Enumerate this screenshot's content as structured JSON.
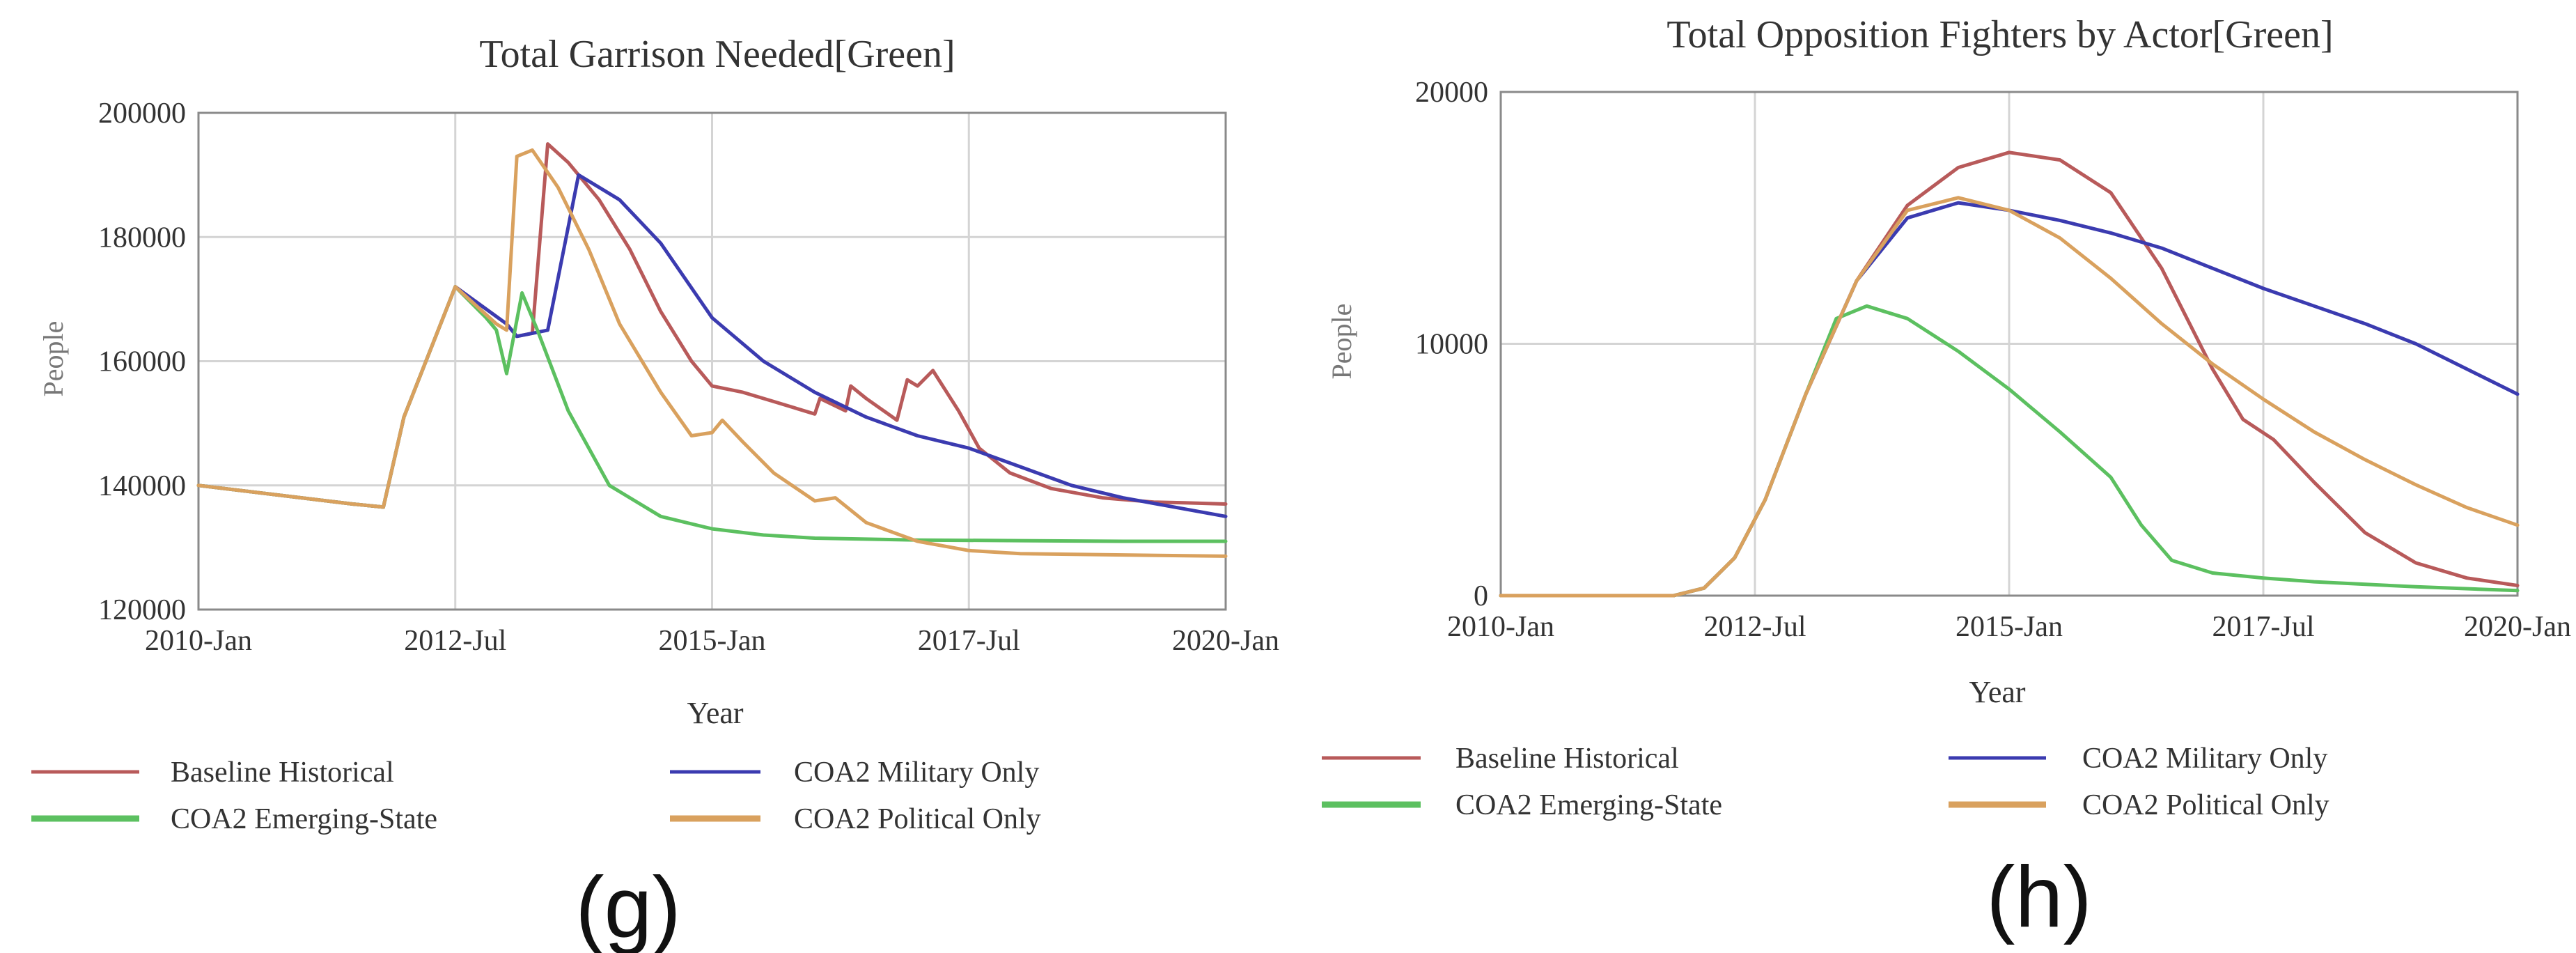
{
  "colors": {
    "baseline": "#B85A5A",
    "military": "#3B3BB0",
    "emerging": "#5CC060",
    "political": "#D9A15E",
    "grid": "#D4D4D4",
    "axis": "#8A8A8A",
    "text": "#333333",
    "ylabel": "#777777"
  },
  "charts": [
    {
      "panel_label": "(g)",
      "legend": [
        {
          "key": "baseline",
          "label": "Baseline Historical"
        },
        {
          "key": "military",
          "label": "COA2 Military Only"
        },
        {
          "key": "emerging",
          "label": "COA2 Emerging-State"
        },
        {
          "key": "political",
          "label": "COA2 Political Only"
        }
      ]
    },
    {
      "panel_label": "(h)",
      "legend": [
        {
          "key": "baseline",
          "label": "Baseline Historical"
        },
        {
          "key": "military",
          "label": "COA2 Military Only"
        },
        {
          "key": "emerging",
          "label": "COA2 Emerging-State"
        },
        {
          "key": "political",
          "label": "COA2 Political Only"
        }
      ]
    }
  ],
  "chart_data": [
    {
      "type": "line",
      "title": "Total Garrison Needed[Green]",
      "xlabel": "Year",
      "ylabel": "People",
      "xlim": [
        2010.0,
        2020.0
      ],
      "ylim": [
        120000,
        200000
      ],
      "yticks": [
        120000,
        140000,
        160000,
        180000,
        200000
      ],
      "ytick_labels": [
        "120000",
        "140000",
        "160000",
        "180000",
        "200000"
      ],
      "xticks": [
        2010.0,
        2012.5,
        2015.0,
        2017.5,
        2020.0
      ],
      "xtick_labels": [
        "2010-Jan",
        "2012-Jul",
        "2015-Jan",
        "2017-Jul",
        "2020-Jan"
      ],
      "grid": true,
      "series": [
        {
          "name": "Baseline Historical",
          "key": "baseline",
          "x": [
            2010.0,
            2011.5,
            2011.8,
            2012.0,
            2012.5,
            2013.0,
            2013.1,
            2013.25,
            2013.4,
            2013.6,
            2013.9,
            2014.2,
            2014.5,
            2014.8,
            2015.0,
            2015.3,
            2015.6,
            2016.0,
            2016.05,
            2016.3,
            2016.35,
            2016.5,
            2016.8,
            2016.9,
            2017.0,
            2017.15,
            2017.4,
            2017.6,
            2017.9,
            2018.3,
            2018.8,
            2019.3,
            2019.6,
            2020.0
          ],
          "y": [
            140000,
            137000,
            136500,
            151000,
            172000,
            166000,
            164000,
            164500,
            195000,
            192000,
            186000,
            178000,
            168000,
            160000,
            156000,
            155000,
            153500,
            151500,
            154000,
            152000,
            156000,
            154000,
            150500,
            157000,
            156000,
            158500,
            152000,
            146000,
            142000,
            139500,
            138000,
            137300,
            137200,
            137000
          ]
        },
        {
          "name": "COA2 Military Only",
          "key": "military",
          "x": [
            2010.0,
            2011.5,
            2011.8,
            2012.0,
            2012.5,
            2013.0,
            2013.1,
            2013.25,
            2013.4,
            2013.7,
            2014.1,
            2014.5,
            2015.0,
            2015.5,
            2016.0,
            2016.5,
            2017.0,
            2017.5,
            2018.0,
            2018.5,
            2019.0,
            2019.5,
            2020.0
          ],
          "y": [
            140000,
            137000,
            136500,
            151000,
            172000,
            166000,
            164000,
            164500,
            165000,
            190000,
            186000,
            179000,
            167000,
            160000,
            155000,
            151000,
            148000,
            146000,
            143000,
            140000,
            138000,
            136500,
            135000
          ]
        },
        {
          "name": "COA2 Emerging-State",
          "key": "emerging",
          "x": [
            2010.0,
            2011.5,
            2011.8,
            2012.0,
            2012.5,
            2012.8,
            2012.9,
            2013.0,
            2013.15,
            2013.3,
            2013.6,
            2014.0,
            2014.5,
            2015.0,
            2015.5,
            2016.0,
            2017.0,
            2018.0,
            2019.0,
            2020.0
          ],
          "y": [
            140000,
            137000,
            136500,
            151000,
            172000,
            167000,
            165000,
            158000,
            171000,
            165000,
            152000,
            140000,
            135000,
            133000,
            132000,
            131500,
            131200,
            131100,
            131000,
            131000
          ]
        },
        {
          "name": "COA2 Political Only",
          "key": "political",
          "x": [
            2010.0,
            2011.5,
            2011.8,
            2012.0,
            2012.5,
            2012.9,
            2013.0,
            2013.1,
            2013.25,
            2013.5,
            2013.8,
            2014.1,
            2014.5,
            2014.8,
            2015.0,
            2015.1,
            2015.3,
            2015.6,
            2016.0,
            2016.2,
            2016.5,
            2017.0,
            2017.5,
            2018.0,
            2019.0,
            2020.0
          ],
          "y": [
            140000,
            137000,
            136500,
            151000,
            172000,
            166000,
            165000,
            193000,
            194000,
            188000,
            178000,
            166000,
            155000,
            148000,
            148500,
            150500,
            147000,
            142000,
            137500,
            138000,
            134000,
            131000,
            129500,
            129000,
            128800,
            128600
          ]
        }
      ]
    },
    {
      "type": "line",
      "title": "Total Opposition Fighters by Actor[Green]",
      "xlabel": "Year",
      "ylabel": "People",
      "xlim": [
        2010.0,
        2020.0
      ],
      "ylim": [
        0,
        20000
      ],
      "yticks": [
        0,
        10000,
        20000
      ],
      "ytick_labels": [
        "0",
        "10000",
        "20000"
      ],
      "xticks": [
        2010.0,
        2012.5,
        2015.0,
        2017.5,
        2020.0
      ],
      "xtick_labels": [
        "2010-Jan",
        "2012-Jul",
        "2015-Jan",
        "2017-Jul",
        "2020-Jan"
      ],
      "grid": true,
      "series": [
        {
          "name": "Baseline Historical",
          "key": "baseline",
          "x": [
            2010.0,
            2011.7,
            2012.0,
            2012.3,
            2012.6,
            2013.0,
            2013.5,
            2014.0,
            2014.5,
            2015.0,
            2015.5,
            2016.0,
            2016.5,
            2017.0,
            2017.3,
            2017.6,
            2018.0,
            2018.5,
            2019.0,
            2019.5,
            2020.0
          ],
          "y": [
            0,
            0,
            300,
            1500,
            3800,
            8000,
            12500,
            15500,
            17000,
            17600,
            17300,
            16000,
            13000,
            9000,
            7000,
            6200,
            4500,
            2500,
            1300,
            700,
            400
          ]
        },
        {
          "name": "COA2 Military Only",
          "key": "military",
          "x": [
            2010.0,
            2011.7,
            2012.0,
            2012.3,
            2012.6,
            2013.0,
            2013.5,
            2014.0,
            2014.5,
            2015.0,
            2015.5,
            2016.0,
            2016.5,
            2017.0,
            2017.5,
            2018.0,
            2018.5,
            2019.0,
            2019.5,
            2020.0
          ],
          "y": [
            0,
            0,
            300,
            1500,
            3800,
            8000,
            12500,
            15000,
            15600,
            15300,
            14900,
            14400,
            13800,
            13000,
            12200,
            11500,
            10800,
            10000,
            9000,
            8000
          ]
        },
        {
          "name": "COA2 Emerging-State",
          "key": "emerging",
          "x": [
            2010.0,
            2011.7,
            2012.0,
            2012.3,
            2012.6,
            2013.0,
            2013.3,
            2013.6,
            2014.0,
            2014.5,
            2015.0,
            2015.5,
            2016.0,
            2016.3,
            2016.6,
            2017.0,
            2017.5,
            2018.0,
            2019.0,
            2020.0
          ],
          "y": [
            0,
            0,
            300,
            1500,
            3800,
            8000,
            11000,
            11500,
            11000,
            9700,
            8200,
            6500,
            4700,
            2800,
            1400,
            900,
            700,
            550,
            350,
            200
          ]
        },
        {
          "name": "COA2 Political Only",
          "key": "political",
          "x": [
            2010.0,
            2011.7,
            2012.0,
            2012.3,
            2012.6,
            2013.0,
            2013.5,
            2014.0,
            2014.5,
            2015.0,
            2015.5,
            2016.0,
            2016.5,
            2017.0,
            2017.5,
            2018.0,
            2018.5,
            2019.0,
            2019.5,
            2020.0
          ],
          "y": [
            0,
            0,
            300,
            1500,
            3800,
            8000,
            12500,
            15300,
            15800,
            15300,
            14200,
            12600,
            10800,
            9200,
            7800,
            6500,
            5400,
            4400,
            3500,
            2800
          ]
        }
      ]
    }
  ]
}
